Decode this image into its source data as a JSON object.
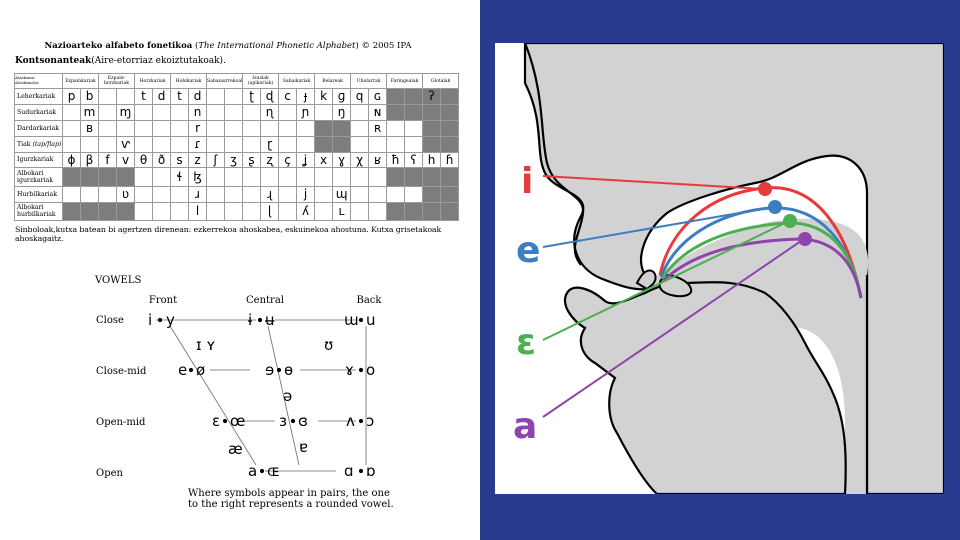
{
  "ipa_chart": {
    "title_bold": "Nazioarteko alfabeto fonetikoa",
    "title_open": "(",
    "title_italic": "The International Phonetic Alphabet",
    "title_close": ")",
    "title_year": "© 2005 IPA",
    "consonants_heading_bold": "Kontsonanteak",
    "consonants_heading_rest": "(Aire-etorriaz ekoiztutakoak).",
    "corner_top": "Ahoskunea",
    "corner_bottom": "Ahoskamolea",
    "columns": [
      "Ezpainkariak",
      "Ezpain-horzkariak",
      "Horzkariak",
      "Hobikariak",
      "Sabaiaurrekoak",
      "Izuslak (apikariak)",
      "Sabaikariak",
      "Belareak",
      "Ubularrak",
      "Faringealak",
      "Glotalak"
    ],
    "rows": [
      {
        "label": "Leherkariak",
        "cells": [
          "p",
          "b",
          "",
          "",
          "t",
          "d",
          "t",
          "d",
          "",
          "",
          "ʈ",
          "ɖ",
          "c",
          "ɟ",
          "k",
          "ɡ",
          "q",
          "ɢ",
          "",
          "",
          "ʔ",
          ""
        ]
      },
      {
        "label": "Sudurkariak",
        "cells": [
          "",
          "m",
          "",
          "ɱ",
          "",
          "",
          "",
          "n",
          "",
          "",
          "",
          "ɳ",
          "",
          "ɲ",
          "",
          "ŋ",
          "",
          "ɴ",
          "",
          "",
          "",
          ""
        ]
      },
      {
        "label": "Dardarkariak",
        "cells": [
          "",
          "ʙ",
          "",
          "",
          "",
          "",
          "",
          "r",
          "",
          "",
          "",
          "",
          "",
          "",
          "",
          "",
          "",
          "ʀ",
          "",
          "",
          "",
          ""
        ]
      },
      {
        "label": "Tiak",
        "label_italic": "(tap/flap)",
        "cells": [
          "",
          "",
          "",
          "ⱱ",
          "",
          "",
          "",
          "ɾ",
          "",
          "",
          "",
          "ɽ",
          "",
          "",
          "",
          "",
          "",
          "",
          "",
          "",
          "",
          ""
        ]
      },
      {
        "label": "Igurzkariak",
        "cells": [
          "ɸ",
          "β",
          "f",
          "v",
          "θ",
          "ð",
          "s",
          "z",
          "ʃ",
          "ʒ",
          "ʂ",
          "ʐ",
          "ç",
          "ʝ",
          "x",
          "ɣ",
          "χ",
          "ʁ",
          "ħ",
          "ʕ",
          "h",
          "ɦ"
        ]
      },
      {
        "label": "Albokari igurzkariak",
        "cells": [
          "",
          "",
          "",
          "",
          "",
          "",
          "ɬ",
          "ɮ",
          "",
          "",
          "",
          "",
          "",
          "",
          "",
          "",
          "",
          "",
          "",
          "",
          "",
          ""
        ]
      },
      {
        "label": "Hurbilkariak",
        "cells": [
          "",
          "",
          "",
          "ʋ",
          "",
          "",
          "",
          "ɹ",
          "",
          "",
          "",
          "ɻ",
          "",
          "j",
          "",
          "ɰ",
          "",
          "",
          "",
          "",
          "",
          ""
        ]
      },
      {
        "label": "Albokari hurbilkariak",
        "cells": [
          "",
          "",
          "",
          "",
          "",
          "",
          "",
          "l",
          "",
          "",
          "",
          "ɭ",
          "",
          "ʎ",
          "",
          "ʟ",
          "",
          "",
          "",
          "",
          "",
          ""
        ]
      }
    ],
    "footnote": "Sinboloak,kutxa batean bi agertzen direnean: ezkerrekoa ahoskabea, eskuinekoa ahostuna. Kutxa grisetakoak ahoskagaitz."
  },
  "vowels": {
    "heading": "VOWELS",
    "col_front": "Front",
    "col_central": "Central",
    "col_back": "Back",
    "row_close": "Close",
    "row_close_mid": "Close-mid",
    "row_open_mid": "Open-mid",
    "row_open": "Open",
    "close_front": [
      "i",
      "y"
    ],
    "close_central": [
      "ɨ",
      "ʉ"
    ],
    "close_back": [
      "ɯ",
      "u"
    ],
    "near_close_front": "ɪ ʏ",
    "near_close_back": "ʊ",
    "close_mid_front": [
      "e",
      "ø"
    ],
    "close_mid_central": [
      "ɘ",
      "ɵ"
    ],
    "close_mid_back": [
      "ɤ",
      "o"
    ],
    "mid_central": "ə",
    "open_mid_front": [
      "ɛ",
      "œ"
    ],
    "open_mid_central": [
      "ɜ",
      "ɞ"
    ],
    "open_mid_back": [
      "ʌ",
      "ɔ"
    ],
    "near_open_front": "æ",
    "near_open_central": "ɐ",
    "open_front": [
      "a",
      "ɶ"
    ],
    "open_back": [
      "ɑ",
      "ɒ"
    ],
    "caption_line1": "Where symbols appear in pairs, the one",
    "caption_line2": "to the right represents a rounded vowel."
  },
  "mouth_diagram": {
    "labels": [
      {
        "text": "i",
        "color": "#e8393b"
      },
      {
        "text": "e",
        "color": "#3c7ec2"
      },
      {
        "text": "ɛ",
        "color": "#4caf50"
      },
      {
        "text": "a",
        "color": "#8e44ad"
      }
    ],
    "tissue_color": "#d2d2d2",
    "frame_color": "#283b8f"
  }
}
